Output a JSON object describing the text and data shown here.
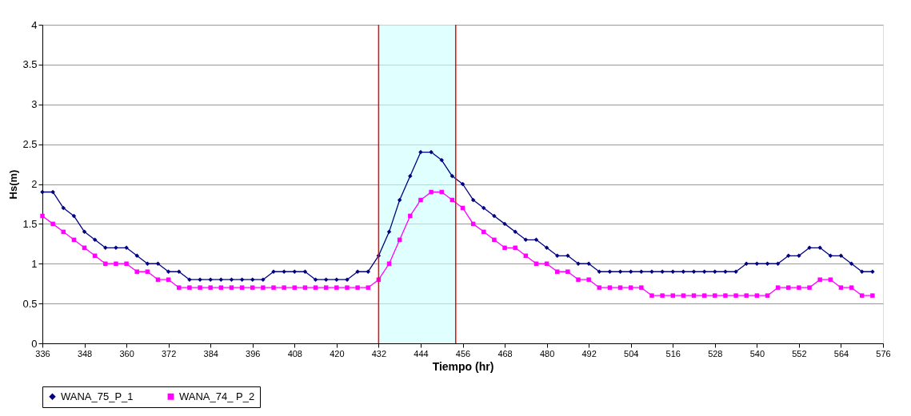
{
  "chart_data": {
    "type": "line",
    "xlabel": "Tiempo (hr)",
    "ylabel": "Hs(m)",
    "x": [
      336,
      339,
      342,
      345,
      348,
      351,
      354,
      357,
      360,
      363,
      366,
      369,
      372,
      375,
      378,
      381,
      384,
      387,
      390,
      393,
      396,
      399,
      402,
      405,
      408,
      411,
      414,
      417,
      420,
      423,
      426,
      429,
      432,
      435,
      438,
      441,
      444,
      447,
      450,
      453,
      456,
      459,
      462,
      465,
      468,
      471,
      474,
      477,
      480,
      483,
      486,
      489,
      492,
      495,
      498,
      501,
      504,
      507,
      510,
      513,
      516,
      519,
      522,
      525,
      528,
      531,
      534,
      537,
      540,
      543,
      546,
      549,
      552,
      555,
      558,
      561,
      564,
      567,
      570,
      573
    ],
    "series": [
      {
        "name": "WANA_75_P_1",
        "color": "#000080",
        "marker": "diamond",
        "values": [
          1.9,
          1.9,
          1.7,
          1.6,
          1.4,
          1.3,
          1.2,
          1.2,
          1.2,
          1.1,
          1.0,
          1.0,
          0.9,
          0.9,
          0.8,
          0.8,
          0.8,
          0.8,
          0.8,
          0.8,
          0.8,
          0.8,
          0.9,
          0.9,
          0.9,
          0.9,
          0.8,
          0.8,
          0.8,
          0.8,
          0.9,
          0.9,
          1.1,
          1.4,
          1.8,
          2.1,
          2.4,
          2.4,
          2.3,
          2.1,
          2.0,
          1.8,
          1.7,
          1.6,
          1.5,
          1.4,
          1.3,
          1.3,
          1.2,
          1.1,
          1.1,
          1.0,
          1.0,
          0.9,
          0.9,
          0.9,
          0.9,
          0.9,
          0.9,
          0.9,
          0.9,
          0.9,
          0.9,
          0.9,
          0.9,
          0.9,
          0.9,
          1.0,
          1.0,
          1.0,
          1.0,
          1.1,
          1.1,
          1.2,
          1.2,
          1.1,
          1.1,
          1.0,
          0.9,
          0.9
        ]
      },
      {
        "name": "WANA_74_ P_2",
        "color": "#ff00ff",
        "marker": "square",
        "values": [
          1.6,
          1.5,
          1.4,
          1.3,
          1.2,
          1.1,
          1.0,
          1.0,
          1.0,
          0.9,
          0.9,
          0.8,
          0.8,
          0.7,
          0.7,
          0.7,
          0.7,
          0.7,
          0.7,
          0.7,
          0.7,
          0.7,
          0.7,
          0.7,
          0.7,
          0.7,
          0.7,
          0.7,
          0.7,
          0.7,
          0.7,
          0.7,
          0.8,
          1.0,
          1.3,
          1.6,
          1.8,
          1.9,
          1.9,
          1.8,
          1.7,
          1.5,
          1.4,
          1.3,
          1.2,
          1.2,
          1.1,
          1.0,
          1.0,
          0.9,
          0.9,
          0.8,
          0.8,
          0.7,
          0.7,
          0.7,
          0.7,
          0.7,
          0.6,
          0.6,
          0.6,
          0.6,
          0.6,
          0.6,
          0.6,
          0.6,
          0.6,
          0.6,
          0.6,
          0.6,
          0.7,
          0.7,
          0.7,
          0.7,
          0.8,
          0.8,
          0.7,
          0.7,
          0.6,
          0.6
        ]
      }
    ],
    "xlim": [
      336,
      576
    ],
    "xticks": [
      336,
      348,
      360,
      372,
      384,
      396,
      408,
      420,
      432,
      444,
      456,
      468,
      480,
      492,
      504,
      516,
      528,
      540,
      552,
      564,
      576
    ],
    "ylim": [
      0,
      4
    ],
    "yticks": [
      0,
      0.5,
      1,
      1.5,
      2,
      2.5,
      3,
      3.5,
      4
    ],
    "bands": [
      {
        "axis": "x",
        "from": 432,
        "to": 454,
        "color": "#ccffff"
      }
    ],
    "ref_lines": [
      {
        "axis": "x",
        "value": 432,
        "color": "#ff0000"
      },
      {
        "axis": "x",
        "value": 454,
        "color": "#ff0000"
      }
    ],
    "grid": "y",
    "legend": "bottom",
    "line_style": "solid"
  }
}
